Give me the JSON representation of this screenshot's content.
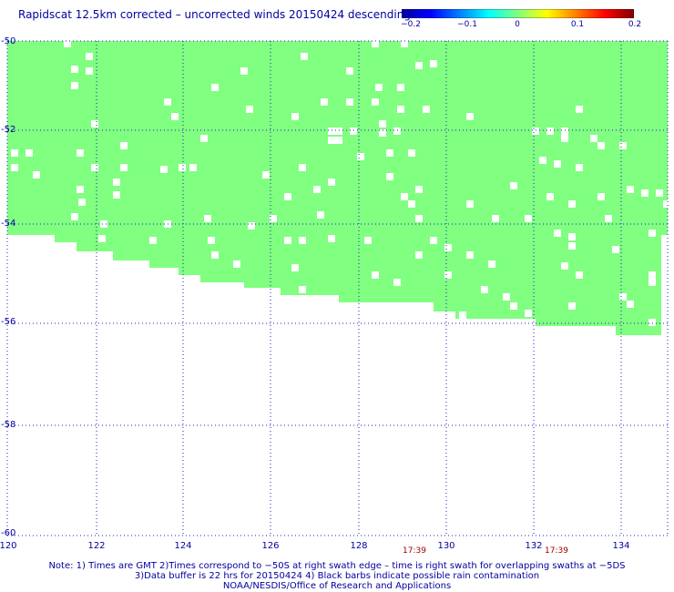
{
  "title": "Rapidscat 12.5km corrected – uncorrected winds 20150424 descending",
  "colorbar": {
    "labels": [
      "−0.2",
      "−0.1",
      "0",
      "0.1",
      "0.2"
    ],
    "stops": [
      "#0000a0",
      "#0000ff",
      "#0080ff",
      "#00ffff",
      "#80ff80",
      "#ffff00",
      "#ff8000",
      "#ff0000",
      "#800000"
    ]
  },
  "map": {
    "lon_range": [
      120,
      135
    ],
    "lat_range": [
      -50,
      -60
    ],
    "lat_labels": [
      "-50",
      "-52",
      "-54",
      "-56",
      "-58",
      "-60"
    ],
    "lon_labels": [
      "120",
      "122",
      "124",
      "126",
      "128",
      "130",
      "132",
      "134"
    ],
    "swath_color": "#80ff80",
    "times": [
      "17:39",
      "17:39"
    ]
  },
  "notes": {
    "line1": "Note: 1) Times are GMT 2)Times correspond to −50S at right swath edge – time is right swath for overlapping swaths at −5DS",
    "line2": "3)Data buffer is 22 hrs for 20150424 4) Black barbs indicate possible rain contamination",
    "line3": "NOAA/NESDIS/Office of Research and Applications"
  }
}
